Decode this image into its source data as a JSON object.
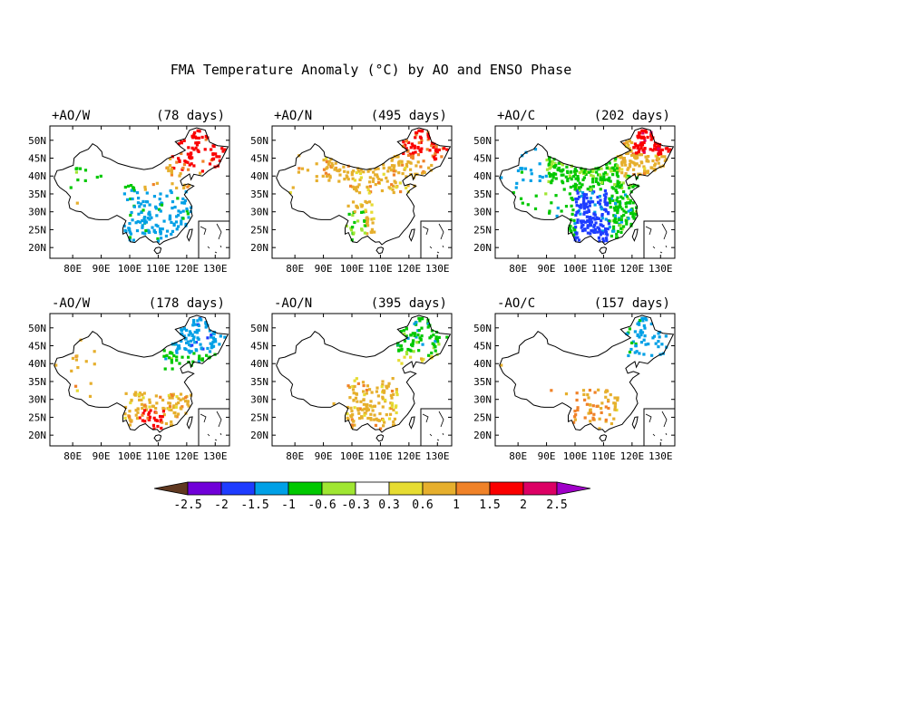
{
  "figure": {
    "title": "FMA Temperature Anomaly (°C) by AO and ENSO Phase"
  },
  "panels": [
    {
      "label": "+AO/W",
      "days": "(78 days)",
      "pattern": "cool-south-warm-ne"
    },
    {
      "label": "+AO/N",
      "days": "(495 days)",
      "pattern": "warm-north"
    },
    {
      "label": "+AO/C",
      "days": "(202 days)",
      "pattern": "cool-widespread-warm-ne"
    },
    {
      "label": "-AO/W",
      "days": "(178 days)",
      "pattern": "cool-ne-warm-south"
    },
    {
      "label": "-AO/N",
      "days": "(395 days)",
      "pattern": "cool-ne-warm-sw"
    },
    {
      "label": "-AO/C",
      "days": "(157 days)",
      "pattern": "cool-ne-warm-sw-sparse"
    }
  ],
  "axes": {
    "lon_ticks": [
      "80E",
      "90E",
      "100E",
      "110E",
      "120E",
      "130E"
    ],
    "lat_ticks": [
      "50N",
      "45N",
      "40N",
      "35N",
      "30N",
      "25N",
      "20N"
    ]
  },
  "colorbar": {
    "labels": [
      "-2.5",
      "-2",
      "-1.5",
      "-1",
      "-0.6",
      "-0.3",
      "0.3",
      "0.6",
      "1",
      "1.5",
      "2",
      "2.5"
    ],
    "colors": [
      "#603820",
      "#7000d8",
      "#1e3cff",
      "#00a0e6",
      "#00c800",
      "#a0e632",
      "#ffffff",
      "#e6dc32",
      "#e6af2d",
      "#f08228",
      "#fa0000",
      "#dc0064",
      "#a000c8"
    ]
  }
}
